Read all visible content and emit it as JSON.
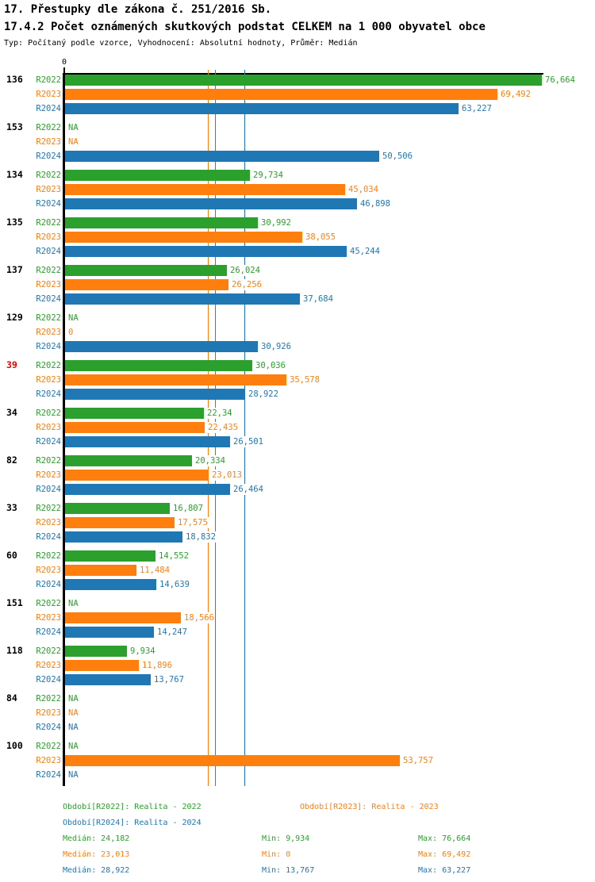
{
  "colors": {
    "r2022": "#2ca02c",
    "r2023": "#ff7f0e",
    "r2024": "#1f77b4",
    "highlight_label": "#e60000",
    "axis": "#000000",
    "background": "#ffffff"
  },
  "chart_data": {
    "type": "bar",
    "orientation": "horizontal",
    "title": "17. Přestupky dle zákona č. 251/2016 Sb.",
    "subtitle": "17.4.2 Počet oznámených skutkových podstat CELKEM na 1 000 obyvatel obce",
    "meta": "Typ: Počítaný podle vzorce, Vyhodnocení: Absolutní hodnoty, Průměr: Medián",
    "xlim": [
      0,
      77
    ],
    "grid": false,
    "axis_zero_label": "0",
    "value_format": "decimal-comma, NA = missing",
    "legend_position": "bottom",
    "series": [
      {
        "name": "R2022",
        "color": "#2ca02c",
        "legend": "Období[R2022]: Realita - 2022",
        "median": 24.182,
        "stats": {
          "median": "Medián: 24,182",
          "min": "Min: 9,934",
          "max": "Max: 76,664"
        }
      },
      {
        "name": "R2023",
        "color": "#ff7f0e",
        "legend": "Období[R2023]: Realita - 2023",
        "median": 23.013,
        "stats": {
          "median": "Medián: 23,013",
          "min": "Min: 0",
          "max": "Max: 69,492"
        }
      },
      {
        "name": "R2024",
        "color": "#1f77b4",
        "legend": "Období[R2024]: Realita - 2024",
        "median": 28.922,
        "stats": {
          "median": "Medián: 28,922",
          "min": "Min: 13,767",
          "max": "Max: 63,227"
        }
      }
    ],
    "groups": [
      {
        "label": "136",
        "highlighted": false,
        "values": [
          76.664,
          69.492,
          63.227
        ],
        "display": [
          "76,664",
          "69,492",
          "63,227"
        ]
      },
      {
        "label": "153",
        "highlighted": false,
        "values": [
          null,
          null,
          50.506
        ],
        "display": [
          "NA",
          "NA",
          "50,506"
        ]
      },
      {
        "label": "134",
        "highlighted": false,
        "values": [
          29.734,
          45.034,
          46.898
        ],
        "display": [
          "29,734",
          "45,034",
          "46,898"
        ]
      },
      {
        "label": "135",
        "highlighted": false,
        "values": [
          30.992,
          38.055,
          45.244
        ],
        "display": [
          "30,992",
          "38,055",
          "45,244"
        ]
      },
      {
        "label": "137",
        "highlighted": false,
        "values": [
          26.024,
          26.256,
          37.684
        ],
        "display": [
          "26,024",
          "26,256",
          "37,684"
        ]
      },
      {
        "label": "129",
        "highlighted": false,
        "values": [
          null,
          0,
          30.926
        ],
        "display": [
          "NA",
          "0",
          "30,926"
        ]
      },
      {
        "label": "39",
        "highlighted": true,
        "values": [
          30.036,
          35.578,
          28.922
        ],
        "display": [
          "30,036",
          "35,578",
          "28,922"
        ]
      },
      {
        "label": "34",
        "highlighted": false,
        "values": [
          22.34,
          22.435,
          26.501
        ],
        "display": [
          "22,34",
          "22,435",
          "26,501"
        ]
      },
      {
        "label": "82",
        "highlighted": false,
        "values": [
          20.334,
          23.013,
          26.464
        ],
        "display": [
          "20,334",
          "23,013",
          "26,464"
        ]
      },
      {
        "label": "33",
        "highlighted": false,
        "values": [
          16.807,
          17.575,
          18.832
        ],
        "display": [
          "16,807",
          "17,575",
          "18,832"
        ]
      },
      {
        "label": "60",
        "highlighted": false,
        "values": [
          14.552,
          11.484,
          14.639
        ],
        "display": [
          "14,552",
          "11,484",
          "14,639"
        ]
      },
      {
        "label": "151",
        "highlighted": false,
        "values": [
          null,
          18.566,
          14.247
        ],
        "display": [
          "NA",
          "18,566",
          "14,247"
        ]
      },
      {
        "label": "118",
        "highlighted": false,
        "values": [
          9.934,
          11.896,
          13.767
        ],
        "display": [
          "9,934",
          "11,896",
          "13,767"
        ]
      },
      {
        "label": "84",
        "highlighted": false,
        "values": [
          null,
          null,
          null
        ],
        "display": [
          "NA",
          "NA",
          "NA"
        ]
      },
      {
        "label": "100",
        "highlighted": false,
        "values": [
          null,
          53.757,
          null
        ],
        "display": [
          "NA",
          "53,757",
          "NA"
        ]
      }
    ]
  }
}
